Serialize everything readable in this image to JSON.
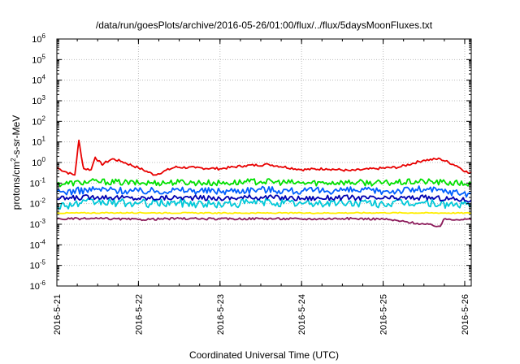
{
  "chart_data": {
    "type": "line",
    "title": "/data/run/goesPlots/archive/2016-05-26/01:00/flux/../flux/5daysMoonFluxes.txt",
    "xlabel": "Coordinated Universal Time (UTC)",
    "ylabel": {
      "base": "protons/cm",
      "sup": "2",
      "rest": "-s-sr-MeV"
    },
    "y_scale": "log",
    "ylim_exp": [
      -6,
      6
    ],
    "y_tick_exponents": [
      -6,
      -5,
      -4,
      -3,
      -2,
      -1,
      0,
      1,
      2,
      3,
      4,
      5,
      6
    ],
    "y_tick_base": "10",
    "xlim_days": [
      21.0,
      26.08
    ],
    "x_ticks": [
      {
        "day": 21,
        "label": "2016-5-21"
      },
      {
        "day": 22,
        "label": "2016-5-22"
      },
      {
        "day": 23,
        "label": "2016-5-23"
      },
      {
        "day": 24,
        "label": "2016-5-24"
      },
      {
        "day": 25,
        "label": "2016-5-25"
      },
      {
        "day": 26,
        "label": "2016-5-26"
      }
    ],
    "grid": true,
    "legend": "none",
    "series": [
      {
        "color": "#e80000",
        "level": 0.5,
        "noise": 0.12,
        "points": [
          [
            21.0,
            0.55
          ],
          [
            21.15,
            0.3
          ],
          [
            21.22,
            0.25
          ],
          [
            21.27,
            12
          ],
          [
            21.3,
            2.0
          ],
          [
            21.33,
            0.5
          ],
          [
            21.42,
            0.45
          ],
          [
            21.47,
            1.8
          ],
          [
            21.55,
            0.8
          ],
          [
            21.68,
            1.5
          ],
          [
            21.8,
            1.1
          ],
          [
            22.0,
            0.55
          ],
          [
            22.2,
            0.25
          ],
          [
            22.45,
            0.6
          ],
          [
            22.7,
            0.55
          ],
          [
            23.0,
            0.5
          ],
          [
            23.3,
            0.7
          ],
          [
            23.6,
            0.8
          ],
          [
            24.0,
            0.45
          ],
          [
            24.3,
            0.5
          ],
          [
            24.6,
            0.4
          ],
          [
            24.9,
            0.5
          ],
          [
            25.2,
            0.6
          ],
          [
            25.5,
            1.3
          ],
          [
            25.7,
            1.5
          ],
          [
            25.9,
            0.7
          ],
          [
            26.05,
            0.3
          ]
        ]
      },
      {
        "color": "#00e000",
        "level": 0.1,
        "noise": 0.3,
        "points": [
          [
            21.0,
            0.09
          ],
          [
            21.5,
            0.12
          ],
          [
            22.0,
            0.1
          ],
          [
            22.5,
            0.11
          ],
          [
            23.0,
            0.1
          ],
          [
            23.5,
            0.12
          ],
          [
            24.0,
            0.1
          ],
          [
            24.5,
            0.11
          ],
          [
            25.0,
            0.1
          ],
          [
            25.5,
            0.12
          ],
          [
            26.08,
            0.09
          ]
        ]
      },
      {
        "color": "#0060ff",
        "level": 0.04,
        "noise": 0.35,
        "points": [
          [
            21.0,
            0.035
          ],
          [
            21.5,
            0.05
          ],
          [
            22.0,
            0.04
          ],
          [
            22.5,
            0.045
          ],
          [
            23.0,
            0.04
          ],
          [
            23.5,
            0.05
          ],
          [
            24.0,
            0.04
          ],
          [
            24.5,
            0.045
          ],
          [
            25.0,
            0.04
          ],
          [
            25.5,
            0.05
          ],
          [
            26.08,
            0.03
          ]
        ]
      },
      {
        "color": "#00c8d8",
        "level": 0.01,
        "noise": 0.4,
        "points": [
          [
            21.0,
            0.008
          ],
          [
            21.5,
            0.012
          ],
          [
            22.0,
            0.01
          ],
          [
            22.5,
            0.011
          ],
          [
            23.0,
            0.009
          ],
          [
            23.5,
            0.012
          ],
          [
            24.0,
            0.01
          ],
          [
            24.5,
            0.011
          ],
          [
            25.0,
            0.01
          ],
          [
            25.5,
            0.011
          ],
          [
            26.08,
            0.008
          ]
        ]
      },
      {
        "color": "#0000b0",
        "level": 0.018,
        "noise": 0.25,
        "points": [
          [
            21.0,
            0.017
          ],
          [
            21.5,
            0.022
          ],
          [
            22.0,
            0.018
          ],
          [
            22.5,
            0.02
          ],
          [
            23.0,
            0.018
          ],
          [
            23.5,
            0.021
          ],
          [
            24.0,
            0.018
          ],
          [
            24.5,
            0.02
          ],
          [
            25.0,
            0.018
          ],
          [
            25.5,
            0.02
          ],
          [
            26.08,
            0.015
          ]
        ]
      },
      {
        "color": "#ffee00",
        "level": 0.0035,
        "noise": 0.05,
        "points": [
          [
            21.0,
            0.0035
          ],
          [
            22.0,
            0.0036
          ],
          [
            23.0,
            0.0035
          ],
          [
            24.0,
            0.0035
          ],
          [
            25.0,
            0.0036
          ],
          [
            26.08,
            0.0035
          ]
        ]
      },
      {
        "color": "#8b1a5a",
        "level": 0.0018,
        "noise": 0.1,
        "points": [
          [
            21.0,
            0.0018
          ],
          [
            21.5,
            0.0019
          ],
          [
            22.0,
            0.0017
          ],
          [
            22.5,
            0.0019
          ],
          [
            23.0,
            0.0018
          ],
          [
            23.5,
            0.0019
          ],
          [
            24.0,
            0.0018
          ],
          [
            24.5,
            0.0019
          ],
          [
            25.0,
            0.0018
          ],
          [
            25.7,
            0.0008
          ],
          [
            25.75,
            0.0018
          ],
          [
            26.08,
            0.0017
          ]
        ]
      }
    ]
  }
}
